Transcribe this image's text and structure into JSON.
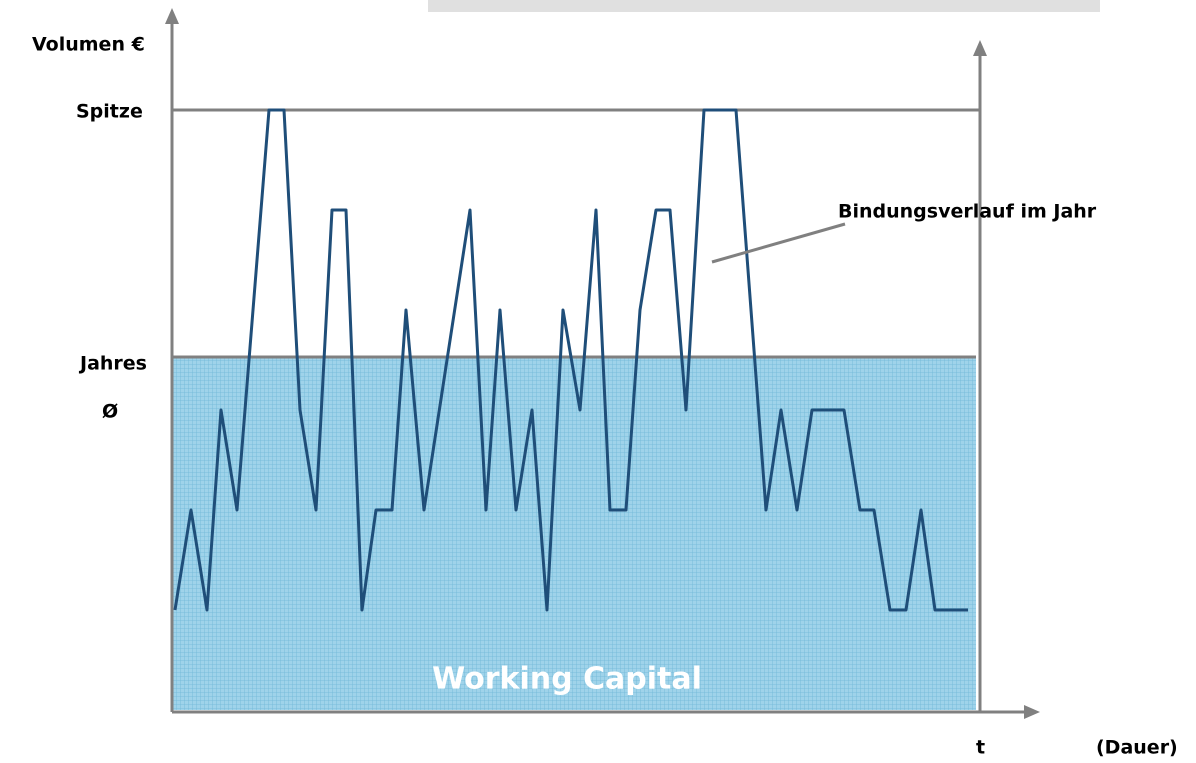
{
  "labels": {
    "y_axis": "Volumen €",
    "peak": "Spitze",
    "average_line1": "Jahres",
    "average_line2": "Ø",
    "curve": "Bindungsverlauf im Jahr",
    "area": "Working Capital",
    "x_axis": "t",
    "x_axis_note": "(Dauer)"
  }
}
